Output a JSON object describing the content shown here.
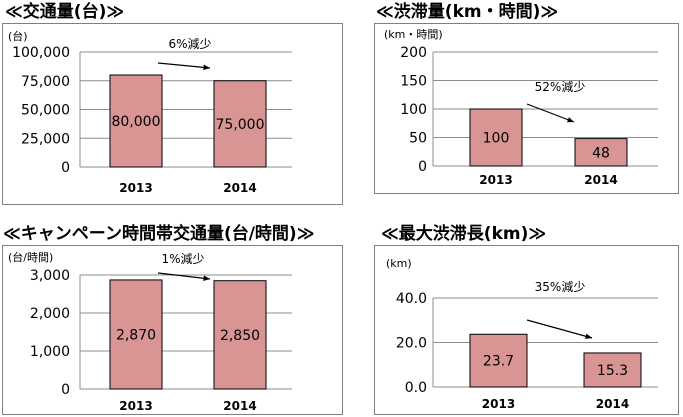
{
  "page_title": "",
  "chart_data": [
    {
      "type": "bar",
      "title": "≪交通量(台)≫",
      "unit": "(台)",
      "categories": [
        "2013",
        "2014"
      ],
      "values": [
        80000,
        75000
      ],
      "value_labels": [
        "80,000",
        "75,000"
      ],
      "ylim": [
        0,
        100000
      ],
      "yticks": [
        0,
        25000,
        50000,
        75000,
        100000
      ],
      "ytick_labels": [
        "0",
        "25,000",
        "50,000",
        "75,000",
        "100,000"
      ],
      "annotation": "6%減少",
      "grid": true,
      "bar_color": "#d99594"
    },
    {
      "type": "bar",
      "title": "≪渋滞量(km・時間)≫",
      "unit": "(km・時間)",
      "categories": [
        "2013",
        "2014"
      ],
      "values": [
        100,
        48
      ],
      "value_labels": [
        "100",
        "48"
      ],
      "ylim": [
        0,
        200
      ],
      "yticks": [
        0,
        50,
        100,
        150,
        200
      ],
      "ytick_labels": [
        "0",
        "50",
        "100",
        "150",
        "200"
      ],
      "annotation": "52%減少",
      "grid": true,
      "bar_color": "#d99594"
    },
    {
      "type": "bar",
      "title": "≪キャンペーン時間帯交通量(台/時間)≫",
      "unit": "(台/時間)",
      "categories": [
        "2013",
        "2014"
      ],
      "values": [
        2870,
        2850
      ],
      "value_labels": [
        "2,870",
        "2,850"
      ],
      "ylim": [
        0,
        3000
      ],
      "yticks": [
        0,
        1000,
        2000,
        3000
      ],
      "ytick_labels": [
        "0",
        "1,000",
        "2,000",
        "3,000"
      ],
      "annotation": "1%減少",
      "grid": true,
      "bar_color": "#d99594"
    },
    {
      "type": "bar",
      "title": "≪最大渋滞長(km)≫",
      "unit": "(km)",
      "categories": [
        "2013",
        "2014"
      ],
      "values": [
        23.7,
        15.3
      ],
      "value_labels": [
        "23.7",
        "15.3"
      ],
      "ylim": [
        0,
        40
      ],
      "yticks": [
        0,
        20,
        40
      ],
      "ytick_labels": [
        "0.0",
        "20.0",
        "40.0"
      ],
      "annotation": "35%減少",
      "grid": true,
      "bar_color": "#d99594"
    }
  ]
}
